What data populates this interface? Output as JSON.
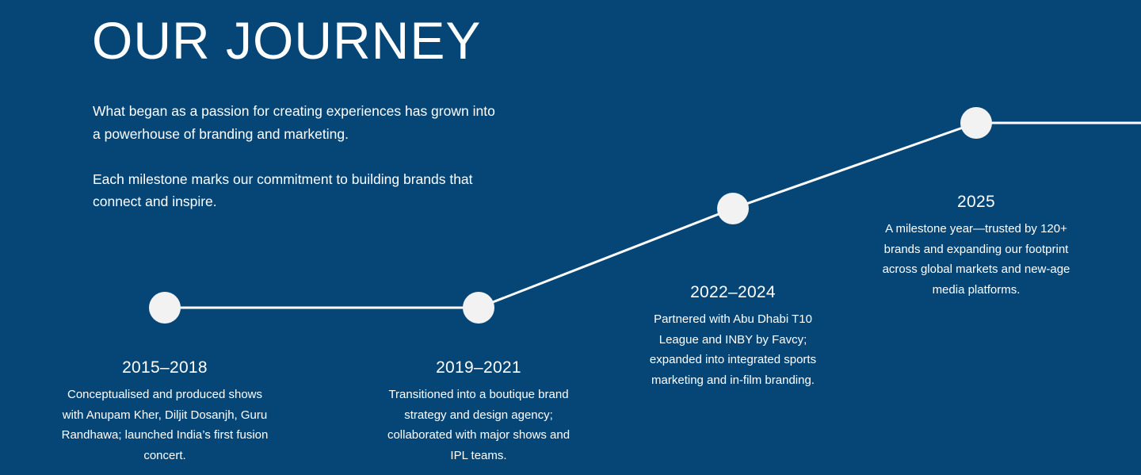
{
  "heading": "OUR JOURNEY",
  "intro": {
    "paragraph1": "What began as a passion for creating experiences has grown into a powerhouse of branding and marketing.",
    "paragraph2": "Each milestone marks our commitment to building brands that connect and inspire."
  },
  "milestones": [
    {
      "year": "2015–2018",
      "text": "Conceptualised and produced shows with Anupam Kher, Diljit Dosanjh, Guru Randhawa; launched India’s first fusion concert."
    },
    {
      "year": "2019–2021",
      "text": "Transitioned into a boutique brand strategy and design agency; collaborated with major shows and IPL teams."
    },
    {
      "year": "2022–2024",
      "text": "Partnered with Abu Dhabi T10 League and INBY by Favcy; expanded into integrated sports marketing and in-film branding."
    },
    {
      "year": "2025",
      "text": "A milestone year—trusted by 120+ brands and expanding our footprint across global markets and new-age media platforms."
    }
  ],
  "colors": {
    "background": "#064677",
    "line": "#ffffff",
    "node": "#f2f2f2",
    "text": "#ffffff"
  }
}
